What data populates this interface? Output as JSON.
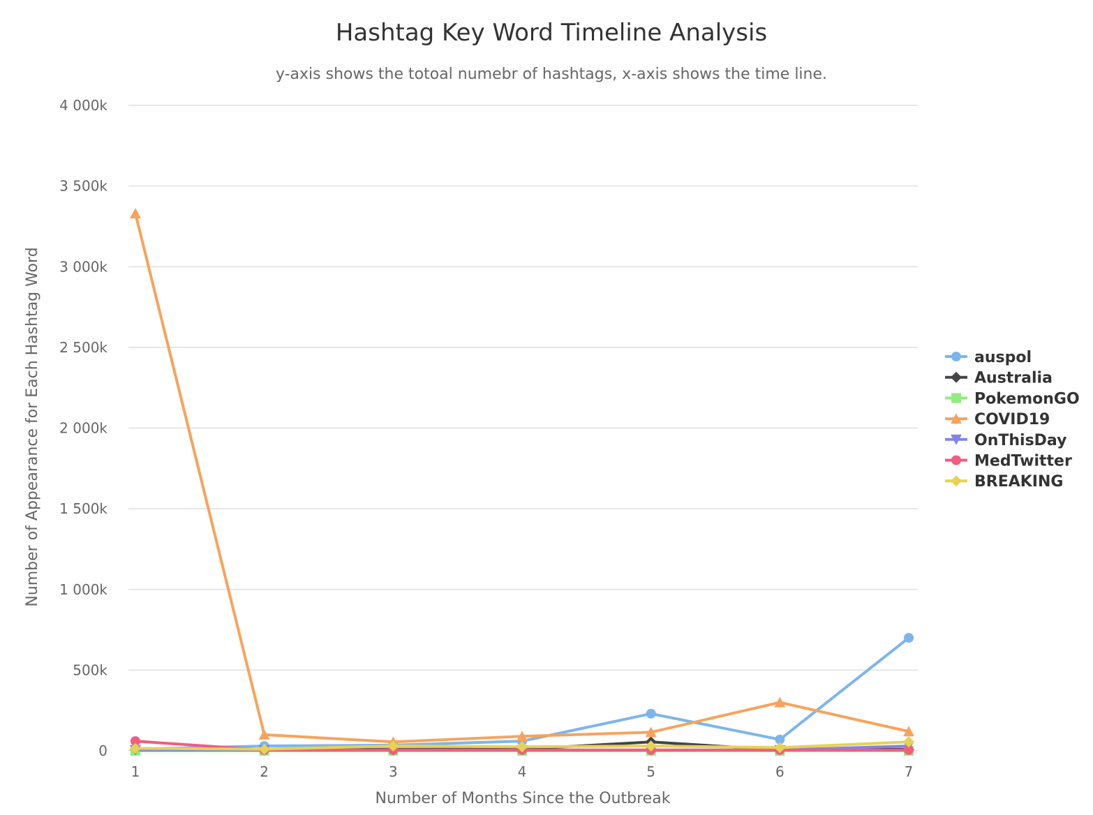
{
  "chart_data": {
    "type": "line",
    "title": "Hashtag Key Word Timeline Analysis",
    "subtitle": "y-axis shows the totoal numebr of hashtags, x-axis shows the time line.",
    "xlabel": "Number of Months Since the Outbreak",
    "ylabel": "Number of Appearance for Each Hashtag Word",
    "x": [
      1,
      2,
      3,
      4,
      5,
      6,
      7
    ],
    "ylim": [
      0,
      4000000
    ],
    "yticks": [
      {
        "value": 0,
        "label": "0"
      },
      {
        "value": 500000,
        "label": "500k"
      },
      {
        "value": 1000000,
        "label": "1 000k"
      },
      {
        "value": 1500000,
        "label": "1 500k"
      },
      {
        "value": 2000000,
        "label": "2 000k"
      },
      {
        "value": 2500000,
        "label": "2 500k"
      },
      {
        "value": 3000000,
        "label": "3 000k"
      },
      {
        "value": 3500000,
        "label": "3 500k"
      },
      {
        "value": 4000000,
        "label": "4 000k"
      }
    ],
    "grid": true,
    "legend_position": "right",
    "series": [
      {
        "name": "auspol",
        "color": "#7cb5ec",
        "marker": "circle",
        "values": [
          10000,
          30000,
          35000,
          60000,
          230000,
          70000,
          700000
        ]
      },
      {
        "name": "Australia",
        "color": "#434348",
        "marker": "diamond",
        "values": [
          5000,
          5000,
          10000,
          10000,
          55000,
          5000,
          10000
        ]
      },
      {
        "name": "PokemonGO",
        "color": "#90ed7d",
        "marker": "square",
        "values": [
          0,
          0,
          0,
          0,
          0,
          0,
          0
        ]
      },
      {
        "name": "COVID19",
        "color": "#f7a35c",
        "marker": "triangle",
        "values": [
          3330000,
          100000,
          55000,
          90000,
          115000,
          300000,
          120000
        ]
      },
      {
        "name": "OnThisDay",
        "color": "#8085e9",
        "marker": "triangle-down",
        "values": [
          5000,
          5000,
          5000,
          5000,
          5000,
          5000,
          30000
        ]
      },
      {
        "name": "MedTwitter",
        "color": "#f15c80",
        "marker": "circle",
        "values": [
          60000,
          5000,
          5000,
          5000,
          5000,
          5000,
          5000
        ]
      },
      {
        "name": "BREAKING",
        "color": "#e4d354",
        "marker": "diamond",
        "values": [
          15000,
          10000,
          30000,
          25000,
          30000,
          20000,
          55000
        ]
      }
    ]
  }
}
